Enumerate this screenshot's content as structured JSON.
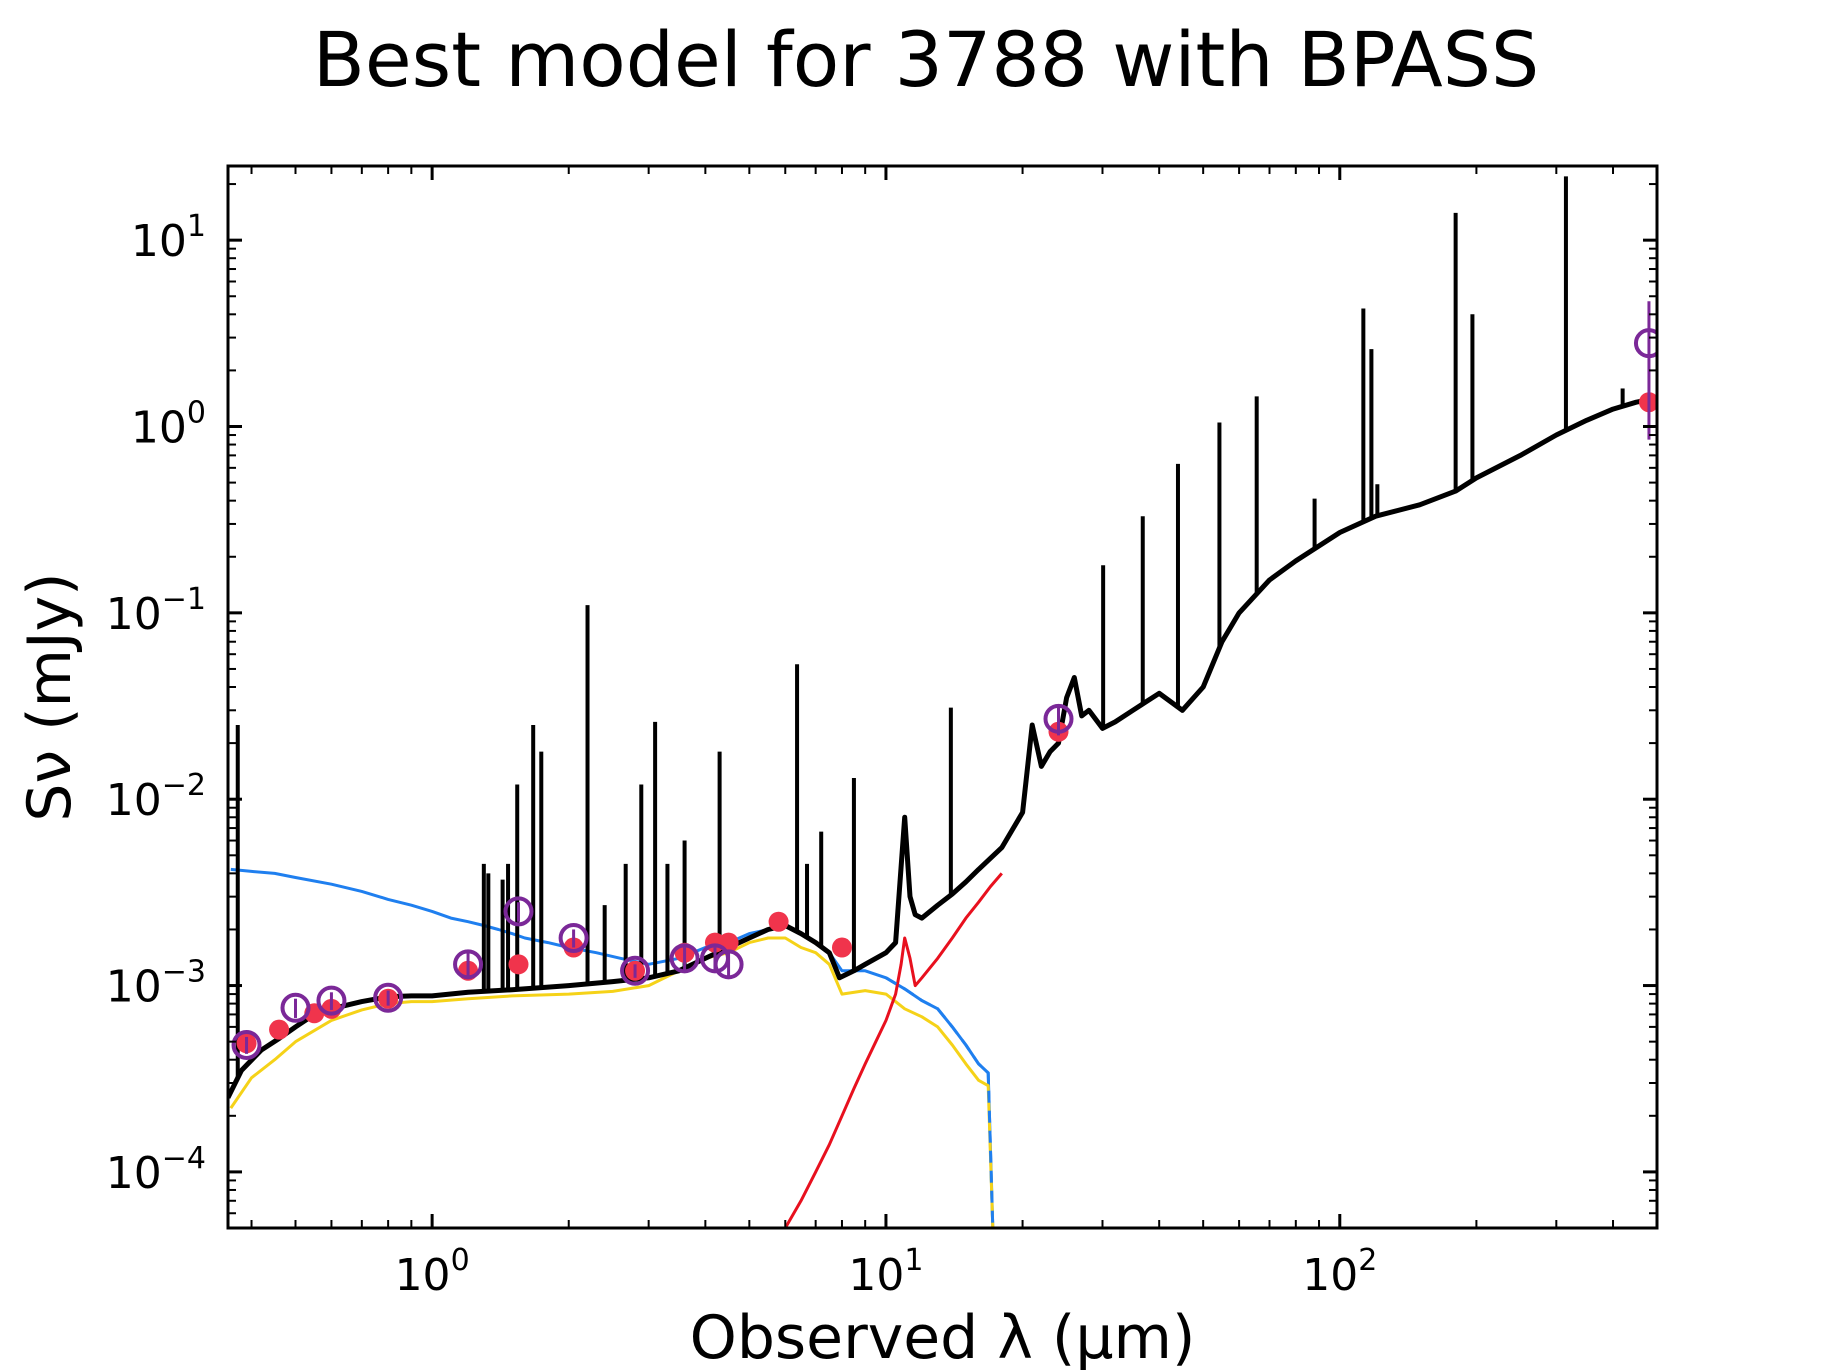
{
  "chart_data": {
    "type": "line",
    "title": "Best model for 3788 with BPASS",
    "xlabel": "Observed λ (μm)",
    "ylabel": "Sν (mJy)",
    "xscale": "log",
    "yscale": "log",
    "xlim": [
      0.355,
      500
    ],
    "ylim": [
      5e-05,
      25
    ],
    "grid": false,
    "legend": "none",
    "x_ticks": [
      {
        "value": 1,
        "base": "10",
        "exp": "0"
      },
      {
        "value": 10,
        "base": "10",
        "exp": "1"
      },
      {
        "value": 100,
        "base": "10",
        "exp": "2"
      }
    ],
    "y_ticks": [
      {
        "value": 0.0001,
        "base": "10",
        "exp": "−4"
      },
      {
        "value": 0.001,
        "base": "10",
        "exp": "−3"
      },
      {
        "value": 0.01,
        "base": "10",
        "exp": "−2"
      },
      {
        "value": 0.1,
        "base": "10",
        "exp": "−1"
      },
      {
        "value": 1,
        "base": "10",
        "exp": "0"
      },
      {
        "value": 10,
        "base": "10",
        "exp": "1"
      }
    ],
    "colors": {
      "total_model": "#000000",
      "unattenuated_stellar": "#1f7fef",
      "attenuated_stellar": "#f5d218",
      "dust": "#e8101e",
      "model_fluxes": "#f0344c",
      "observed_fluxes": "#7b2898"
    },
    "series": [
      {
        "role": "unattenuated_stellar",
        "style": "solid+dashed",
        "x": [
          0.36,
          0.4,
          0.45,
          0.5,
          0.6,
          0.7,
          0.8,
          0.9,
          1.0,
          1.1,
          1.2,
          1.3,
          1.4,
          1.5,
          1.6,
          1.8,
          2.0,
          2.3,
          2.6,
          3.0,
          3.5,
          4.0,
          4.5,
          5.0,
          5.5,
          6.0,
          6.5,
          7.0,
          7.5,
          8.0,
          9.0,
          10.0,
          11.0,
          12.0,
          13.0,
          14.0,
          15.0,
          16.0,
          16.8,
          17.2
        ],
        "y": [
          0.0042,
          0.0041,
          0.004,
          0.0038,
          0.0035,
          0.0032,
          0.0029,
          0.0027,
          0.0025,
          0.0023,
          0.0022,
          0.0021,
          0.002,
          0.0019,
          0.0018,
          0.0017,
          0.0016,
          0.0015,
          0.0014,
          0.0013,
          0.0014,
          0.0016,
          0.0017,
          0.0019,
          0.002,
          0.0021,
          0.0019,
          0.0017,
          0.0015,
          0.0012,
          0.0012,
          0.0011,
          0.00096,
          0.00083,
          0.00075,
          0.0006,
          0.00048,
          0.00038,
          0.00034,
          5e-05
        ]
      },
      {
        "role": "attenuated_stellar",
        "style": "solid",
        "x": [
          0.36,
          0.4,
          0.45,
          0.5,
          0.6,
          0.7,
          0.8,
          0.9,
          1.0,
          1.2,
          1.5,
          2.0,
          2.5,
          3.0,
          3.5,
          4.0,
          4.5,
          5.0,
          5.5,
          6.0,
          6.5,
          7.0,
          7.5,
          8.0,
          9.0,
          10.0,
          11.0,
          12.0,
          13.0,
          14.0,
          15.0,
          16.0,
          16.8,
          17.2
        ],
        "y": [
          0.00022,
          0.00032,
          0.0004,
          0.0005,
          0.00065,
          0.00074,
          0.0008,
          0.00082,
          0.00082,
          0.00085,
          0.00088,
          0.0009,
          0.00093,
          0.001,
          0.0012,
          0.0014,
          0.0015,
          0.0017,
          0.0018,
          0.0018,
          0.0016,
          0.0015,
          0.0013,
          0.0009,
          0.00094,
          0.0009,
          0.00075,
          0.00068,
          0.0006,
          0.00048,
          0.00038,
          0.00031,
          0.00029,
          5e-05
        ]
      },
      {
        "role": "dust",
        "style": "solid",
        "x": [
          6.0,
          6.5,
          7.0,
          7.5,
          8.0,
          8.5,
          9.0,
          9.5,
          10.0,
          10.5,
          10.8,
          11.0,
          11.3,
          11.6,
          12.0,
          13.0,
          14.0,
          15.0,
          16.0,
          17.0,
          18.0
        ],
        "y": [
          5e-05,
          7e-05,
          0.0001,
          0.00014,
          0.0002,
          0.00028,
          0.00038,
          0.0005,
          0.00065,
          0.0009,
          0.0013,
          0.0018,
          0.0014,
          0.001,
          0.0011,
          0.0014,
          0.0018,
          0.0023,
          0.0028,
          0.0034,
          0.004
        ]
      },
      {
        "role": "total_model",
        "style": "solid",
        "x": [
          0.355,
          0.38,
          0.42,
          0.46,
          0.5,
          0.55,
          0.6,
          0.7,
          0.8,
          0.9,
          1.0,
          1.2,
          1.5,
          2.0,
          2.5,
          3.0,
          3.5,
          4.0,
          4.5,
          5.0,
          5.5,
          6.0,
          6.5,
          7.0,
          7.5,
          7.9,
          8.5,
          9.0,
          10.0,
          10.5,
          11.0,
          11.3,
          11.6,
          12.0,
          13.0,
          14.0,
          15.0,
          16.0,
          18.0,
          20.0,
          21.0,
          22.0,
          23.0,
          24.0,
          25.0,
          26.0,
          27.0,
          28.0,
          30.0,
          32.0,
          35.0,
          40.0,
          45.0,
          50.0,
          55.0,
          60.0,
          70.0,
          80.0,
          100.0,
          120.0,
          150.0,
          180.0,
          200.0,
          250.0,
          300.0,
          350.0,
          400.0,
          450.0,
          500.0
        ],
        "y": [
          0.00025,
          0.00035,
          0.00045,
          0.00052,
          0.0006,
          0.0007,
          0.00075,
          0.00082,
          0.00087,
          0.00088,
          0.00088,
          0.00092,
          0.00095,
          0.001,
          0.00105,
          0.0011,
          0.0012,
          0.0014,
          0.0016,
          0.0018,
          0.002,
          0.0021,
          0.0019,
          0.0017,
          0.0015,
          0.0011,
          0.0012,
          0.0013,
          0.0015,
          0.0017,
          0.008,
          0.003,
          0.0024,
          0.0023,
          0.0027,
          0.0031,
          0.0036,
          0.0042,
          0.0055,
          0.0085,
          0.025,
          0.015,
          0.018,
          0.02,
          0.035,
          0.045,
          0.028,
          0.03,
          0.024,
          0.026,
          0.03,
          0.037,
          0.03,
          0.04,
          0.07,
          0.1,
          0.15,
          0.19,
          0.27,
          0.33,
          0.38,
          0.45,
          0.53,
          0.7,
          0.9,
          1.08,
          1.24,
          1.35,
          1.42
        ]
      }
    ],
    "emission_lines": [
      {
        "x": 0.373,
        "peak": 0.025
      },
      {
        "x": 0.502,
        "peak": 0.0006
      },
      {
        "x": 1.3,
        "peak": 0.0045
      },
      {
        "x": 1.33,
        "peak": 0.004
      },
      {
        "x": 1.43,
        "peak": 0.0037
      },
      {
        "x": 1.47,
        "peak": 0.0045
      },
      {
        "x": 1.54,
        "peak": 0.012
      },
      {
        "x": 1.67,
        "peak": 0.025
      },
      {
        "x": 1.74,
        "peak": 0.018
      },
      {
        "x": 2.2,
        "peak": 0.11
      },
      {
        "x": 2.4,
        "peak": 0.0027
      },
      {
        "x": 2.67,
        "peak": 0.0045
      },
      {
        "x": 2.89,
        "peak": 0.012
      },
      {
        "x": 3.1,
        "peak": 0.026
      },
      {
        "x": 3.3,
        "peak": 0.0045
      },
      {
        "x": 3.6,
        "peak": 0.006
      },
      {
        "x": 4.3,
        "peak": 0.018
      },
      {
        "x": 6.37,
        "peak": 0.053
      },
      {
        "x": 6.7,
        "peak": 0.0045
      },
      {
        "x": 7.2,
        "peak": 0.0067
      },
      {
        "x": 8.5,
        "peak": 0.013
      },
      {
        "x": 13.9,
        "peak": 0.031
      },
      {
        "x": 30.1,
        "peak": 0.18
      },
      {
        "x": 36.8,
        "peak": 0.33
      },
      {
        "x": 44.0,
        "peak": 0.63
      },
      {
        "x": 54.3,
        "peak": 1.05
      },
      {
        "x": 65.6,
        "peak": 1.45
      },
      {
        "x": 88.0,
        "peak": 0.41
      },
      {
        "x": 112.7,
        "peak": 4.3
      },
      {
        "x": 117.4,
        "peak": 2.6
      },
      {
        "x": 121.0,
        "peak": 0.49
      },
      {
        "x": 180.0,
        "peak": 14.0
      },
      {
        "x": 196.0,
        "peak": 4.0
      },
      {
        "x": 315.0,
        "peak": 22.0
      },
      {
        "x": 420.0,
        "peak": 1.6
      }
    ],
    "model_fluxes": {
      "x": [
        0.39,
        0.46,
        0.55,
        0.6,
        0.8,
        1.2,
        1.55,
        2.05,
        2.8,
        3.6,
        4.2,
        4.5,
        5.8,
        8.0,
        24.0,
        480.0
      ],
      "y": [
        0.00049,
        0.00058,
        0.00071,
        0.00075,
        0.00085,
        0.0012,
        0.0013,
        0.0016,
        0.0012,
        0.0015,
        0.0017,
        0.0017,
        0.0022,
        0.0016,
        0.023,
        1.35
      ]
    },
    "observed_fluxes": {
      "x": [
        0.39,
        0.5,
        0.6,
        0.8,
        1.2,
        1.55,
        2.05,
        2.8,
        3.6,
        4.2,
        4.5,
        24.0,
        480.0
      ],
      "y": [
        0.00048,
        0.00076,
        0.00083,
        0.00086,
        0.0013,
        0.0025,
        0.0018,
        0.0012,
        0.0014,
        0.0014,
        0.0013,
        0.027,
        2.8
      ],
      "yerr_low": [
        0.00043,
        0.00067,
        0.00074,
        0.00078,
        0.0011,
        0.0022,
        0.0016,
        0.0011,
        0.0012,
        0.0012,
        0.0011,
        0.022,
        0.85
      ],
      "yerr_high": [
        0.00053,
        0.00085,
        0.00092,
        0.00094,
        0.0015,
        0.0028,
        0.002,
        0.0013,
        0.0016,
        0.0016,
        0.0015,
        0.032,
        4.7
      ]
    }
  }
}
